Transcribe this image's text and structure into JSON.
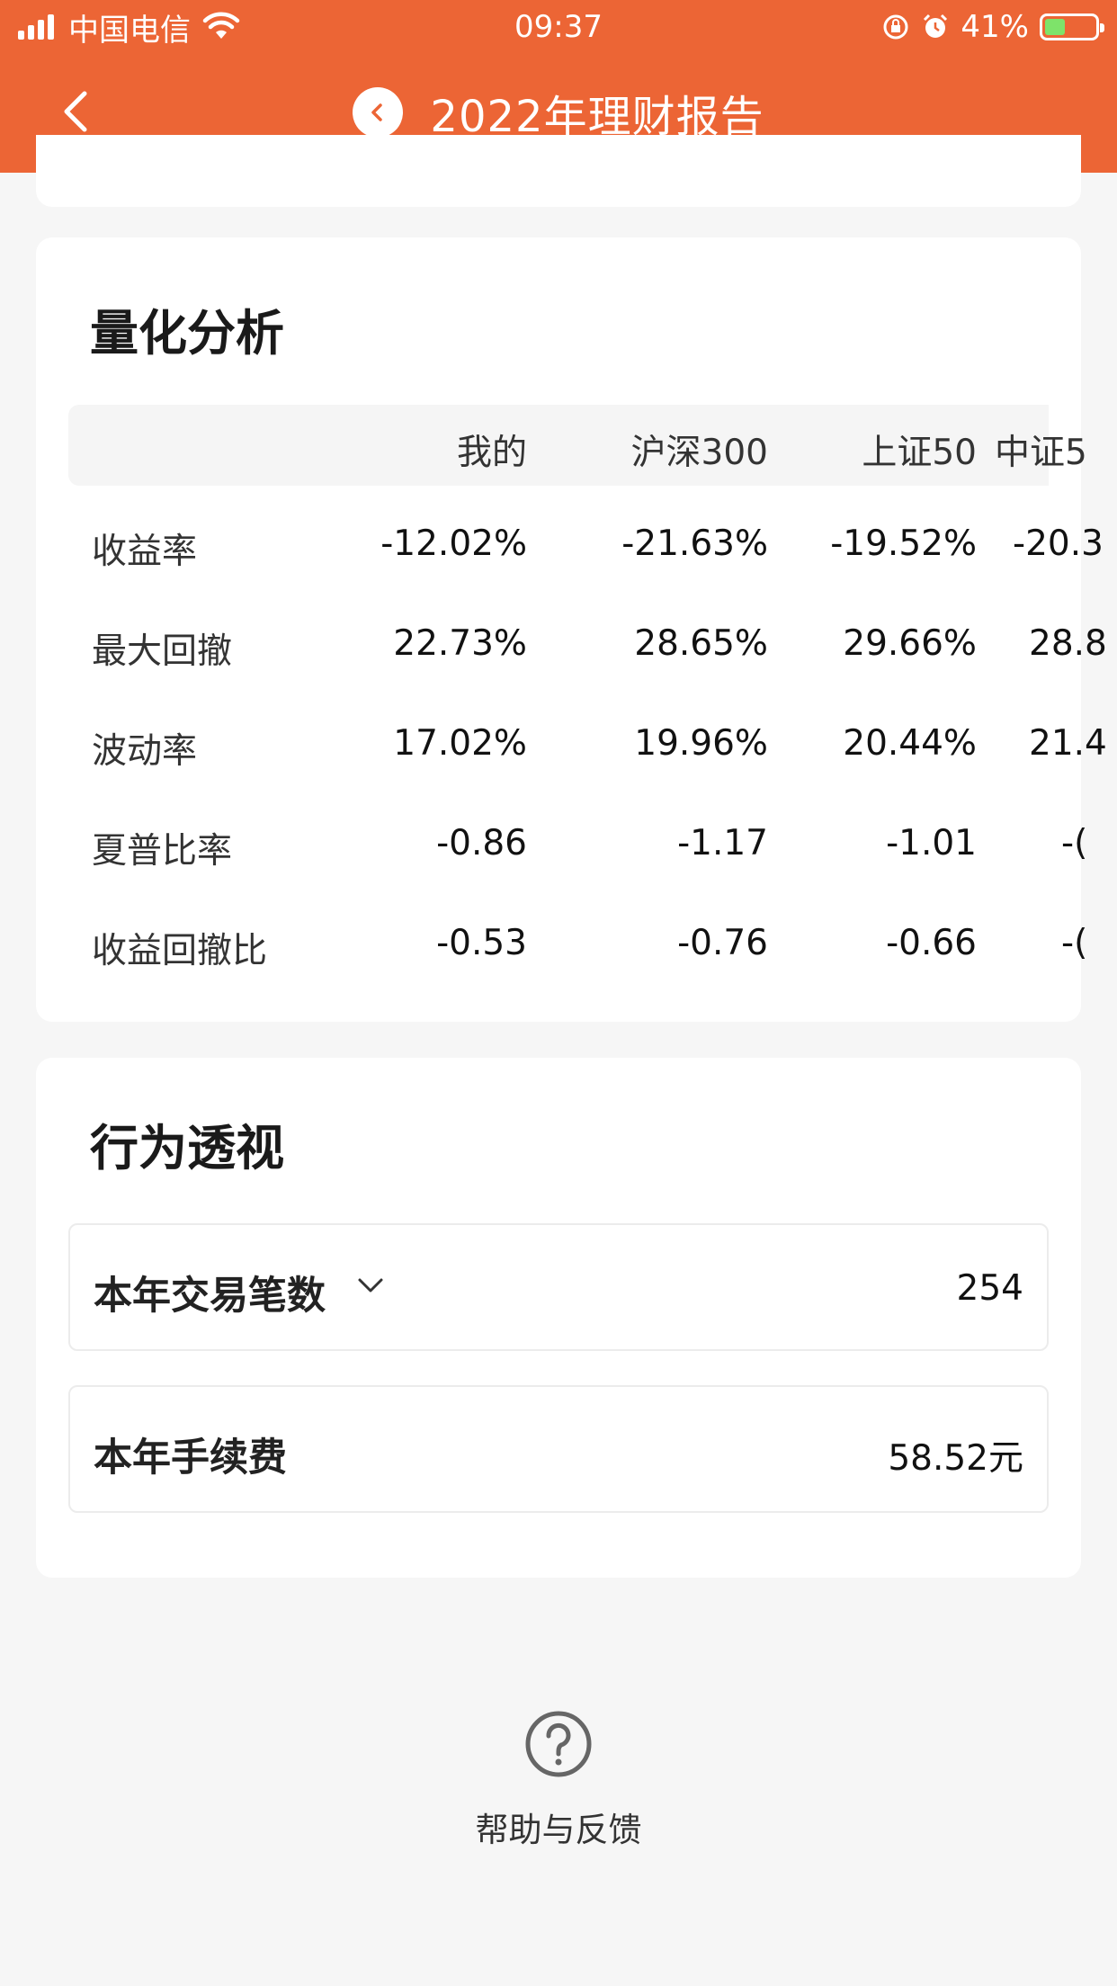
{
  "status_bar": {
    "carrier": "中国电信",
    "time": "09:37",
    "battery": "41%"
  },
  "nav": {
    "title": "2022年理财报告"
  },
  "quant": {
    "title": "量化分析",
    "columns": [
      "我的",
      "沪深300",
      "上证50",
      "中证5"
    ],
    "rows": [
      {
        "label": "收益率",
        "values": [
          "-12.02%",
          "-21.63%",
          "-19.52%",
          "-20.3"
        ]
      },
      {
        "label": "最大回撤",
        "values": [
          "22.73%",
          "28.65%",
          "29.66%",
          "28.8"
        ]
      },
      {
        "label": "波动率",
        "values": [
          "17.02%",
          "19.96%",
          "20.44%",
          "21.4"
        ]
      },
      {
        "label": "夏普比率",
        "values": [
          "-0.86",
          "-1.17",
          "-1.01",
          "-("
        ]
      },
      {
        "label": "收益回撤比",
        "values": [
          "-0.53",
          "-0.76",
          "-0.66",
          "-("
        ]
      }
    ]
  },
  "behavior": {
    "title": "行为透视",
    "trade_count": {
      "label": "本年交易笔数",
      "value": "254"
    },
    "fees": {
      "label": "本年手续费",
      "value": "58.52元"
    }
  },
  "help": {
    "label": "帮助与反馈"
  }
}
